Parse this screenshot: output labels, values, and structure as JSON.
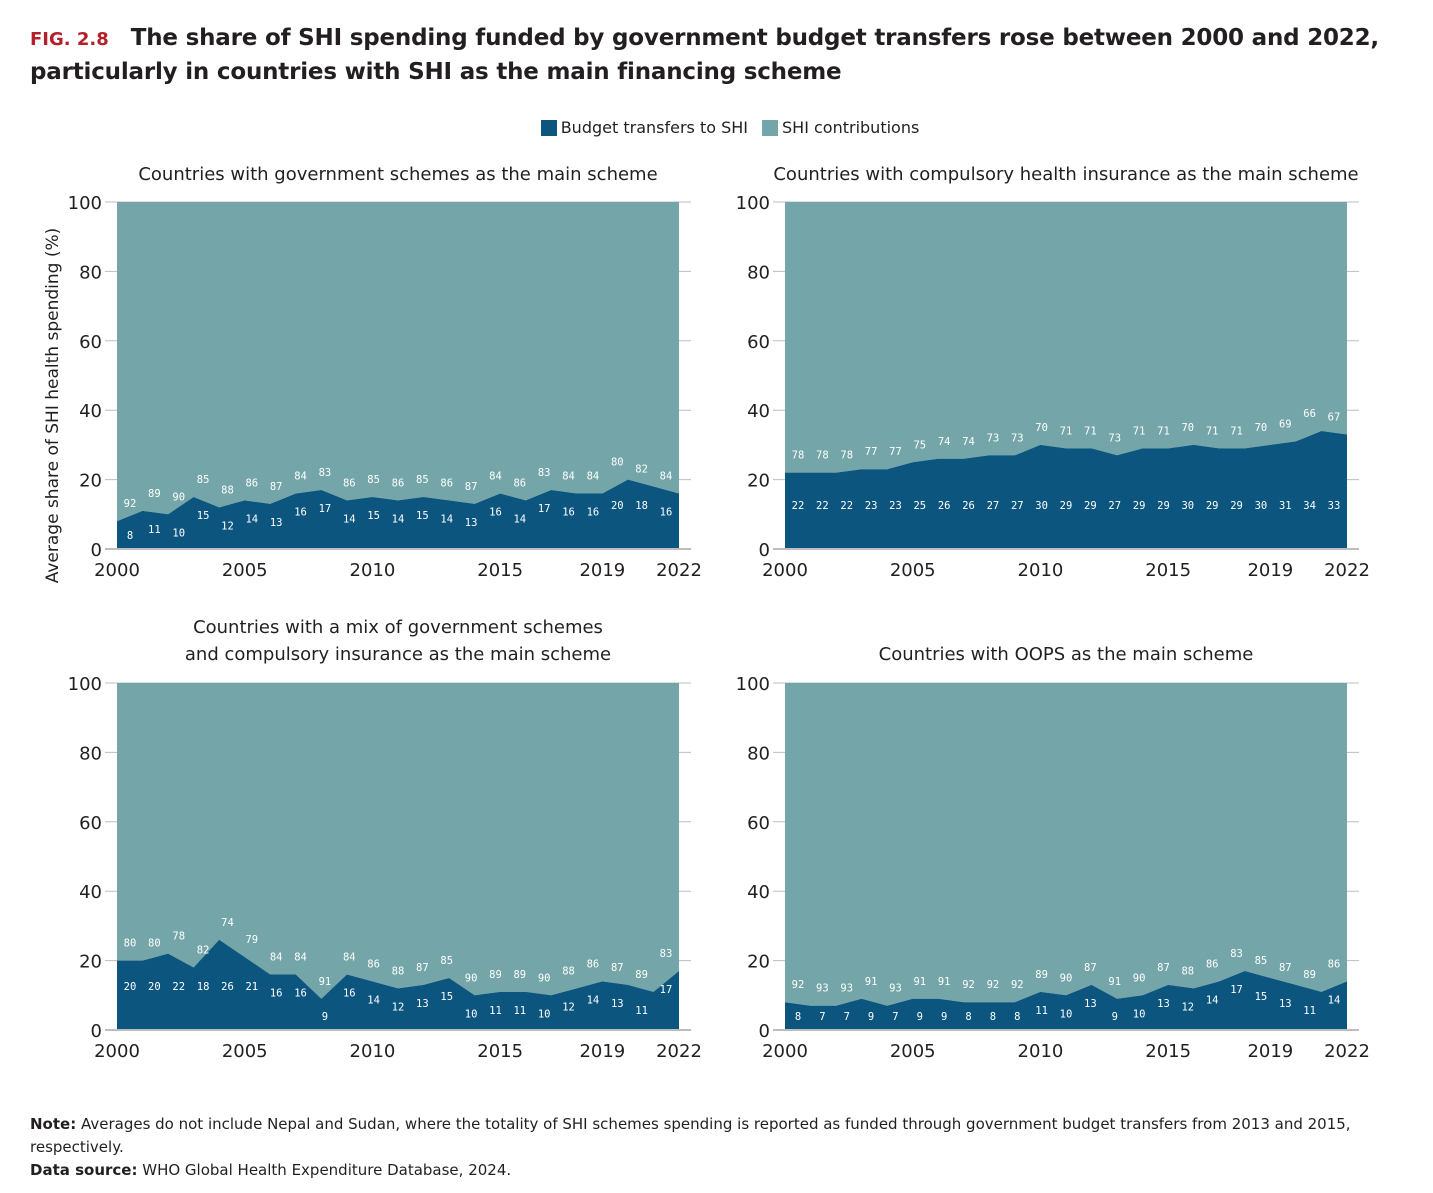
{
  "header": {
    "fig_label": "FIG. 2.8",
    "title": "The share of SHI spending funded by government budget transfers rose between 2000 and 2022, particularly in countries with SHI as the main financing scheme"
  },
  "colors": {
    "budget_transfers": "#0b557f",
    "shi_contributions": "#74a5a8",
    "fig_label": "#b3202a",
    "gridline": "#bdbdbd"
  },
  "legend": [
    {
      "label": "Budget transfers to SHI",
      "color": "#0b557f"
    },
    {
      "label": "SHI contributions",
      "color": "#74a5a8"
    }
  ],
  "footer": {
    "note_label": "Note:",
    "note_text": " Averages do not include Nepal and Sudan, where the totality of SHI schemes spending is reported as funded through government budget transfers from 2013 and 2015, respectively.",
    "source_label": "Data source:",
    "source_text": " WHO Global Health Expenditure Database, 2024."
  },
  "chart_data": [
    {
      "type": "area",
      "stacked": true,
      "title": [
        "Countries with government schemes as the main scheme"
      ],
      "ylabel": "Average share of SHI health spending (%)",
      "xlabel": "",
      "ylim": [
        0,
        100
      ],
      "yticks": [
        0,
        20,
        40,
        60,
        80,
        100
      ],
      "xticks": [
        2000,
        2005,
        2010,
        2015,
        2019,
        2022
      ],
      "x": [
        2000,
        2001,
        2002,
        2003,
        2004,
        2005,
        2006,
        2007,
        2008,
        2009,
        2010,
        2011,
        2012,
        2013,
        2014,
        2015,
        2016,
        2017,
        2018,
        2019,
        2020,
        2021,
        2022
      ],
      "series": [
        {
          "name": "Budget transfers to SHI",
          "values": [
            8,
            11,
            10,
            15,
            12,
            14,
            13,
            16,
            17,
            14,
            15,
            14,
            15,
            14,
            13,
            16,
            14,
            17,
            16,
            16,
            20,
            18,
            16
          ]
        },
        {
          "name": "SHI contributions",
          "values": [
            92,
            89,
            90,
            85,
            88,
            86,
            87,
            84,
            83,
            86,
            85,
            86,
            85,
            86,
            87,
            84,
            86,
            83,
            84,
            84,
            80,
            82,
            84
          ]
        }
      ]
    },
    {
      "type": "area",
      "stacked": true,
      "title": [
        "Countries with compulsory health insurance as the main scheme"
      ],
      "ylabel": "",
      "xlabel": "",
      "ylim": [
        0,
        100
      ],
      "yticks": [
        0,
        20,
        40,
        60,
        80,
        100
      ],
      "xticks": [
        2000,
        2005,
        2010,
        2015,
        2019,
        2022
      ],
      "x": [
        2000,
        2001,
        2002,
        2003,
        2004,
        2005,
        2006,
        2007,
        2008,
        2009,
        2010,
        2011,
        2012,
        2013,
        2014,
        2015,
        2016,
        2017,
        2018,
        2019,
        2020,
        2021,
        2022
      ],
      "series": [
        {
          "name": "Budget transfers to SHI",
          "values": [
            22,
            22,
            22,
            23,
            23,
            25,
            26,
            26,
            27,
            27,
            30,
            29,
            29,
            27,
            29,
            29,
            30,
            29,
            29,
            30,
            31,
            34,
            33
          ]
        },
        {
          "name": "SHI contributions",
          "values": [
            78,
            78,
            78,
            77,
            77,
            75,
            74,
            74,
            73,
            73,
            70,
            71,
            71,
            73,
            71,
            71,
            70,
            71,
            71,
            70,
            69,
            66,
            67
          ]
        }
      ]
    },
    {
      "type": "area",
      "stacked": true,
      "title": [
        "Countries with a mix of government schemes",
        "and compulsory insurance as the main scheme"
      ],
      "ylabel": "",
      "xlabel": "",
      "ylim": [
        0,
        100
      ],
      "yticks": [
        0,
        20,
        40,
        60,
        80,
        100
      ],
      "xticks": [
        2000,
        2005,
        2010,
        2015,
        2019,
        2022
      ],
      "x": [
        2000,
        2001,
        2002,
        2003,
        2004,
        2005,
        2006,
        2007,
        2008,
        2009,
        2010,
        2011,
        2012,
        2013,
        2014,
        2015,
        2016,
        2017,
        2018,
        2019,
        2020,
        2021,
        2022
      ],
      "series": [
        {
          "name": "Budget transfers to SHI",
          "values": [
            20,
            20,
            22,
            18,
            26,
            21,
            16,
            16,
            9,
            16,
            14,
            12,
            13,
            15,
            10,
            11,
            11,
            10,
            12,
            14,
            13,
            11,
            17
          ]
        },
        {
          "name": "SHI contributions",
          "values": [
            80,
            80,
            78,
            82,
            74,
            79,
            84,
            84,
            91,
            84,
            86,
            88,
            87,
            85,
            90,
            89,
            89,
            90,
            88,
            86,
            87,
            89,
            83
          ]
        }
      ]
    },
    {
      "type": "area",
      "stacked": true,
      "title": [
        "Countries with OOPS as the main scheme"
      ],
      "ylabel": "",
      "xlabel": "",
      "ylim": [
        0,
        100
      ],
      "yticks": [
        0,
        20,
        40,
        60,
        80,
        100
      ],
      "xticks": [
        2000,
        2005,
        2010,
        2015,
        2019,
        2022
      ],
      "x": [
        2000,
        2001,
        2002,
        2003,
        2004,
        2005,
        2006,
        2007,
        2008,
        2009,
        2010,
        2011,
        2012,
        2013,
        2014,
        2015,
        2016,
        2017,
        2018,
        2019,
        2020,
        2021,
        2022
      ],
      "series": [
        {
          "name": "Budget transfers to SHI",
          "values": [
            8,
            7,
            7,
            9,
            7,
            9,
            9,
            8,
            8,
            8,
            11,
            10,
            13,
            9,
            10,
            13,
            12,
            14,
            17,
            15,
            13,
            11,
            14
          ]
        },
        {
          "name": "SHI contributions",
          "values": [
            92,
            93,
            93,
            91,
            93,
            91,
            91,
            92,
            92,
            92,
            89,
            90,
            87,
            91,
            90,
            87,
            88,
            86,
            83,
            85,
            87,
            89,
            86
          ]
        }
      ]
    }
  ]
}
